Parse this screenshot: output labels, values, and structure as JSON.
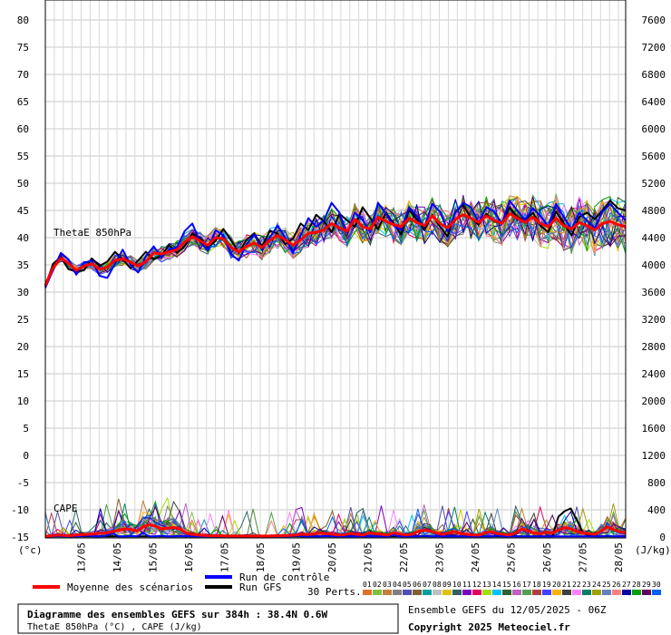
{
  "chart_data": {
    "type": "line",
    "left_axis": {
      "unit": "(°c)",
      "min": -15,
      "max": 80,
      "step": 5
    },
    "right_axis": {
      "unit": "(J/kg)",
      "min": 0,
      "max": 7600,
      "step": 400
    },
    "x_dates": [
      "13/05",
      "14/05",
      "15/05",
      "16/05",
      "17/05",
      "18/05",
      "19/05",
      "20/05",
      "21/05",
      "22/05",
      "23/05",
      "24/05",
      "25/05",
      "26/05",
      "27/05",
      "28/05"
    ],
    "grid": true,
    "annotations": {
      "thetae_label": "ThetaE 850hPa",
      "cape_label": "CAPE"
    },
    "series": [
      {
        "role": "ensemble_mean",
        "color": "#ff0000",
        "thetae": [
          31.2,
          34.5,
          36.2,
          35.3,
          34.0,
          34.8,
          35.2,
          34.2,
          34.6,
          35.8,
          36.1,
          35.5,
          34.8,
          35.6,
          37.2,
          37.0,
          37.4,
          37.8,
          39.2,
          40.2,
          39.4,
          38.6,
          40.0,
          39.8,
          38.2,
          37.4,
          38.4,
          39.0,
          38.2,
          39.5,
          40.4,
          39.6,
          38.6,
          39.6,
          40.8,
          41.0,
          41.4,
          42.6,
          41.8,
          41.2,
          43.4,
          42.0,
          41.6,
          43.8,
          43.0,
          42.4,
          42.0,
          43.6,
          42.8,
          42.2,
          44.0,
          42.6,
          41.8,
          43.4,
          44.2,
          43.6,
          42.8,
          44.0,
          43.2,
          42.6,
          44.4,
          43.6,
          42.8,
          43.8,
          42.6,
          42.0,
          43.6,
          42.2,
          41.6,
          42.8,
          42.2,
          41.4,
          42.6,
          43.0,
          42.4,
          42.0
        ],
        "cape": [
          12,
          20,
          30,
          25,
          20,
          30,
          35,
          40,
          45,
          55,
          60,
          80,
          100,
          120,
          110,
          90,
          150,
          180,
          160,
          120,
          130,
          140,
          120,
          60,
          40,
          30,
          25,
          20,
          20,
          18,
          15,
          15,
          15,
          15,
          15,
          15,
          15,
          15,
          20,
          20,
          25,
          30,
          40,
          35,
          45,
          60,
          50,
          40,
          30,
          35,
          55,
          40,
          30,
          60,
          50,
          40,
          30,
          60,
          45,
          30,
          40,
          80,
          100,
          90,
          60,
          40,
          60,
          80,
          50,
          40,
          30,
          30,
          60,
          80,
          50,
          40,
          30,
          60,
          120,
          90,
          60,
          50,
          70,
          60,
          100,
          140,
          120,
          80,
          60,
          50,
          40,
          90,
          150,
          110,
          80,
          60
        ]
      },
      {
        "role": "control_run",
        "color": "#0000ff",
        "thetae": [
          30.8,
          34.0,
          37.2,
          36.0,
          33.2,
          35.4,
          35.8,
          33.0,
          32.6,
          35.2,
          37.8,
          35.0,
          33.6,
          36.6,
          38.4,
          36.4,
          37.8,
          38.2,
          41.2,
          42.6,
          39.2,
          37.6,
          41.4,
          40.4,
          37.0,
          35.8,
          38.8,
          40.6,
          37.8,
          40.0,
          42.2,
          40.0,
          37.2,
          40.4,
          43.6,
          42.0,
          43.2,
          46.4,
          44.6,
          40.8,
          44.6,
          43.2,
          41.0,
          46.4,
          44.4,
          42.2,
          41.4,
          45.6,
          44.0,
          42.0,
          46.2,
          44.8,
          41.2,
          44.6,
          46.4,
          45.6,
          42.8,
          45.6,
          44.8,
          42.6,
          46.8,
          45.0,
          43.2,
          45.4,
          44.0,
          42.0,
          46.2,
          43.8,
          41.6,
          44.6,
          43.2,
          41.8,
          44.8,
          46.2,
          44.6,
          43.2
        ],
        "cape": [
          10,
          10,
          15,
          10,
          10,
          10,
          15,
          20,
          10,
          10,
          20,
          60,
          10,
          10,
          15,
          10,
          60,
          10,
          10,
          20,
          10,
          10,
          15,
          10,
          10,
          10,
          10,
          10,
          10,
          10,
          10,
          10,
          10,
          10,
          10,
          10,
          10,
          10,
          10,
          10,
          10,
          20,
          10,
          10,
          10,
          10,
          15,
          10,
          10,
          10,
          10,
          10,
          10,
          10,
          10,
          10,
          10,
          30,
          10,
          10,
          10,
          10,
          20,
          10,
          10,
          10,
          10,
          10,
          10,
          10,
          10,
          10,
          10,
          10,
          20,
          10,
          10,
          10,
          10,
          10,
          10,
          10,
          10,
          10,
          10,
          10,
          10,
          10,
          10,
          10,
          10,
          10,
          20,
          10,
          10,
          10
        ]
      },
      {
        "role": "gfs_run",
        "color": "#000000",
        "thetae": [
          31.0,
          35.2,
          36.4,
          34.2,
          33.8,
          34.0,
          36.2,
          34.8,
          35.6,
          37.4,
          36.0,
          34.4,
          35.8,
          37.4,
          36.0,
          36.8,
          38.6,
          37.2,
          38.4,
          40.8,
          40.0,
          38.2,
          39.4,
          41.6,
          39.6,
          37.2,
          39.6,
          40.8,
          38.4,
          41.2,
          40.8,
          38.8,
          39.8,
          42.6,
          41.4,
          44.2,
          43.0,
          41.0,
          44.4,
          43.2,
          42.0,
          45.6,
          43.6,
          41.6,
          44.6,
          42.6,
          40.6,
          45.2,
          43.4,
          41.4,
          44.2,
          42.0,
          40.2,
          44.8,
          46.0,
          43.6,
          42.4,
          44.4,
          43.0,
          42.6,
          45.6,
          43.8,
          43.2,
          44.6,
          42.2,
          41.0,
          44.8,
          42.6,
          40.4,
          43.8,
          44.6,
          43.4,
          45.0,
          46.8,
          45.4,
          45.0
        ],
        "cape": [
          10,
          10,
          10,
          10,
          10,
          10,
          10,
          10,
          10,
          10,
          10,
          10,
          10,
          10,
          10,
          10,
          10,
          10,
          10,
          10,
          10,
          10,
          10,
          10,
          10,
          10,
          10,
          10,
          10,
          10,
          10,
          10,
          10,
          10,
          10,
          10,
          10,
          10,
          10,
          10,
          10,
          10,
          10,
          10,
          10,
          10,
          10,
          10,
          10,
          10,
          10,
          10,
          10,
          10,
          10,
          10,
          10,
          10,
          10,
          10,
          10,
          10,
          10,
          10,
          10,
          10,
          10,
          10,
          10,
          10,
          10,
          10,
          10,
          10,
          10,
          10,
          10,
          10,
          10,
          10,
          10,
          10,
          10,
          10,
          300,
          380,
          420,
          250,
          60,
          20,
          10,
          10,
          10,
          10,
          10,
          10
        ]
      }
    ],
    "perturbation_count": 30
  },
  "legend": {
    "mean_label": "Moyenne des scénarios",
    "control_label": "Run de contrôle",
    "gfs_label": "Run GFS",
    "perts_label": "30 Perts.",
    "perts": [
      {
        "n": "01",
        "color": "#e07030"
      },
      {
        "n": "02",
        "color": "#80c040"
      },
      {
        "n": "03",
        "color": "#c08040"
      },
      {
        "n": "04",
        "color": "#808080"
      },
      {
        "n": "05",
        "color": "#5050b0"
      },
      {
        "n": "06",
        "color": "#806030"
      },
      {
        "n": "07",
        "color": "#00a0a0"
      },
      {
        "n": "08",
        "color": "#c0c0c0"
      },
      {
        "n": "09",
        "color": "#e0c000"
      },
      {
        "n": "10",
        "color": "#306060"
      },
      {
        "n": "11",
        "color": "#8000c0"
      },
      {
        "n": "12",
        "color": "#e00060"
      },
      {
        "n": "13",
        "color": "#a0e000"
      },
      {
        "n": "14",
        "color": "#00c0ff"
      },
      {
        "n": "15",
        "color": "#306030"
      },
      {
        "n": "16",
        "color": "#c060c0"
      },
      {
        "n": "17",
        "color": "#50a050"
      },
      {
        "n": "18",
        "color": "#b04040"
      },
      {
        "n": "19",
        "color": "#4040ff"
      },
      {
        "n": "20",
        "color": "#ffb000"
      },
      {
        "n": "21",
        "color": "#404040"
      },
      {
        "n": "22",
        "color": "#ff80ff"
      },
      {
        "n": "23",
        "color": "#008060"
      },
      {
        "n": "24",
        "color": "#a0a000"
      },
      {
        "n": "25",
        "color": "#6080c0"
      },
      {
        "n": "26",
        "color": "#ff8080"
      },
      {
        "n": "27",
        "color": "#0000a0"
      },
      {
        "n": "28",
        "color": "#00a000"
      },
      {
        "n": "29",
        "color": "#600060"
      },
      {
        "n": "30",
        "color": "#0060ff"
      }
    ]
  },
  "info": {
    "title": "Diagramme des ensembles GEFS sur 384h : 38.4N 0.6W",
    "subtitle": "ThetaE 850hPa (°C) , CAPE (J/kg)",
    "run": "Ensemble GEFS du 12/05/2025 - 06Z",
    "copyright": "Copyright 2025 Meteociel.fr"
  }
}
